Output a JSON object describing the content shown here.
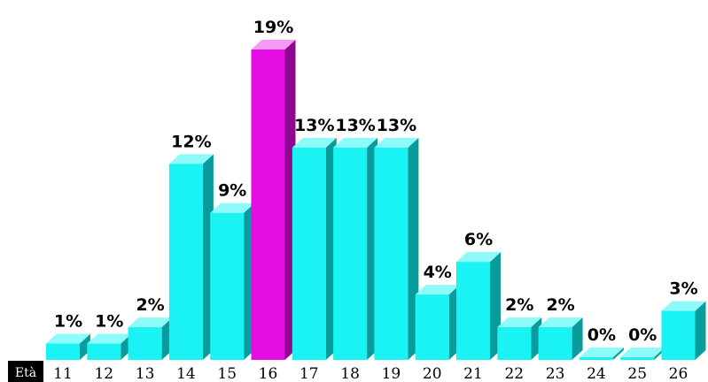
{
  "chart_data": {
    "type": "bar",
    "title": "",
    "xlabel": "Età",
    "ylabel": "",
    "categories": [
      "11",
      "12",
      "13",
      "14",
      "15",
      "16",
      "17",
      "18",
      "19",
      "20",
      "21",
      "22",
      "23",
      "24",
      "25",
      "26"
    ],
    "values": [
      1,
      1,
      2,
      12,
      9,
      19,
      13,
      13,
      13,
      4,
      6,
      2,
      2,
      0,
      0,
      3
    ],
    "value_labels": [
      "1%",
      "1%",
      "2%",
      "12%",
      "9%",
      "19%",
      "13%",
      "13%",
      "13%",
      "4%",
      "6%",
      "2%",
      "2%",
      "0%",
      "0%",
      "3%"
    ],
    "highlight_index": 5,
    "colors": {
      "bar": "#19f3f3",
      "bar_side": "#0a9c9c",
      "bar_top": "#8ffafa",
      "highlight": "#e40ee4",
      "highlight_side": "#8e078e",
      "highlight_top": "#f59af5"
    },
    "ylim": [
      0,
      20
    ],
    "grid": false,
    "legend": "none"
  }
}
